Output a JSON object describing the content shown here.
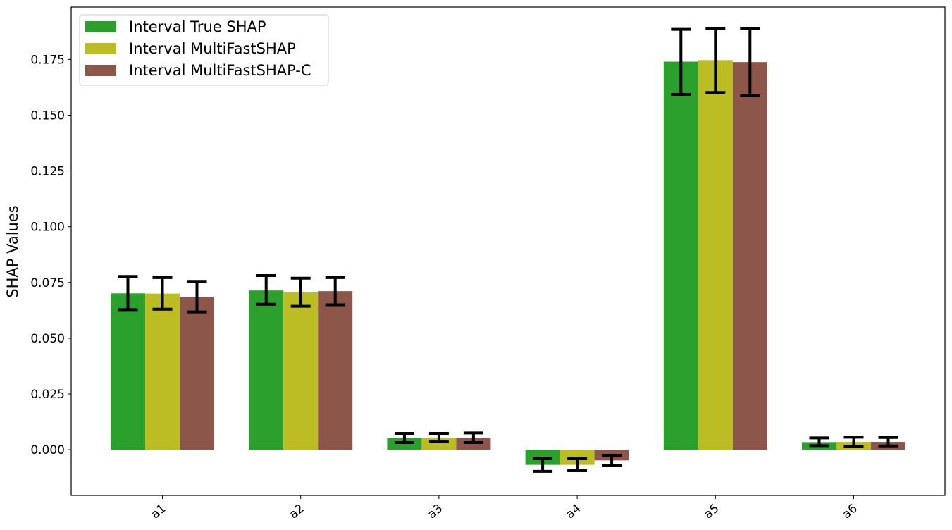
{
  "chart_data": {
    "type": "bar",
    "title": "",
    "xlabel": "",
    "ylabel": "SHAP Values",
    "categories": [
      "a1",
      "a2",
      "a3",
      "a4",
      "a5",
      "a6"
    ],
    "ylim": [
      -0.0205,
      0.1985
    ],
    "yticks": [
      0.0,
      0.025,
      0.05,
      0.075,
      0.1,
      0.125,
      0.15,
      0.175
    ],
    "ytick_labels": [
      "0.000",
      "0.025",
      "0.050",
      "0.075",
      "0.100",
      "0.125",
      "0.150",
      "0.175"
    ],
    "grid": false,
    "legend_position": "top-left",
    "error_bars": true,
    "series": [
      {
        "name": "Interval True SHAP",
        "color": "#2ca02c",
        "values": [
          0.0701,
          0.0714,
          0.0052,
          -0.0068,
          0.174,
          0.0034
        ],
        "err_low": [
          0.0628,
          0.0652,
          0.0032,
          -0.0097,
          0.1593,
          0.0018
        ],
        "err_high": [
          0.0777,
          0.0781,
          0.0073,
          -0.0038,
          0.1885,
          0.0053
        ]
      },
      {
        "name": "Interval MultiFastSHAP",
        "color": "#bcbd22",
        "values": [
          0.07,
          0.0705,
          0.0053,
          -0.0068,
          0.1747,
          0.0035
        ],
        "err_low": [
          0.063,
          0.0643,
          0.0035,
          -0.0092,
          0.1602,
          0.0015
        ],
        "err_high": [
          0.0772,
          0.0769,
          0.0073,
          -0.004,
          0.1889,
          0.0056
        ]
      },
      {
        "name": "Interval MultiFastSHAP-C",
        "color": "#8c564b",
        "values": [
          0.0685,
          0.0711,
          0.0053,
          -0.0048,
          0.1738,
          0.0035
        ],
        "err_low": [
          0.0618,
          0.065,
          0.0032,
          -0.0072,
          0.1587,
          0.0017
        ],
        "err_high": [
          0.0755,
          0.0772,
          0.0075,
          -0.0025,
          0.1887,
          0.0055
        ]
      }
    ]
  }
}
